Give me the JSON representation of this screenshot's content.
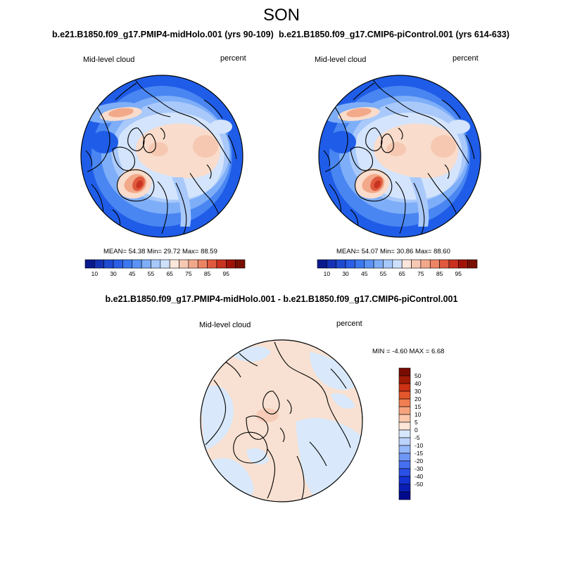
{
  "figure": {
    "season": "SON"
  },
  "panels": [
    {
      "title": "b.e21.B1850.f09_g17.PMIP4-midHolo.001 (yrs 90-109)",
      "variable": "Mid-level cloud",
      "units": "percent",
      "stats": "MEAN=  54.38  Min=  29.72  Max=  88.59",
      "mean": 54.38,
      "min": 29.72,
      "max": 88.59
    },
    {
      "title": "b.e21.B1850.f09_g17.CMIP6-piControl.001 (yrs 614-633)",
      "variable": "Mid-level cloud",
      "units": "percent",
      "stats": "MEAN=  54.07  Min=  30.86  Max=  88.60",
      "mean": 54.07,
      "min": 30.86,
      "max": 88.6
    },
    {
      "title": "b.e21.B1850.f09_g17.PMIP4-midHolo.001 - b.e21.B1850.f09_g17.CMIP6-piControl.001",
      "variable": "Mid-level cloud",
      "units": "percent",
      "stats": "MIN =  -4.60 MAX =   6.68",
      "min": -4.6,
      "max": 6.68
    }
  ],
  "colorbar_abs": {
    "colors": [
      "#0a1a8c",
      "#1432b4",
      "#1e4bd2",
      "#2a5fe6",
      "#3c78f0",
      "#5a93f5",
      "#7eaef8",
      "#a6c8fb",
      "#cde0fc",
      "#fbe6dc",
      "#f8c8b4",
      "#f3a88c",
      "#ec8464",
      "#e05a3e",
      "#c83220",
      "#a01408",
      "#781000"
    ],
    "tick_labels": [
      "10",
      "30",
      "45",
      "55",
      "65",
      "75",
      "85",
      "95"
    ]
  },
  "colorbar_diff": {
    "colors": [
      "#000a8c",
      "#0a1eb4",
      "#1432d2",
      "#2a50e6",
      "#4670f0",
      "#6e96f5",
      "#96b8fa",
      "#bcd4fc",
      "#d8e8fc",
      "#fde6d8",
      "#fbc8ac",
      "#f7a47e",
      "#f07e52",
      "#e4562c",
      "#cc3214",
      "#a01a06",
      "#780c00"
    ],
    "tick_labels": [
      "50",
      "40",
      "30",
      "20",
      "15",
      "10",
      "5",
      "0",
      "-5",
      "-10",
      "-15",
      "-20",
      "-30",
      "-40",
      "-50"
    ]
  },
  "map_colors": {
    "ocean_blue_dark": "#1f5de8",
    "ocean_blue_mid": "#4a86f2",
    "light_blue": "#a9c9fb",
    "pale_blue": "#d4e4fc",
    "pale_pink": "#f9dccb",
    "salmon": "#f2a98a",
    "red": "#e05a3e",
    "diff_pink": "#f8e1d2",
    "diff_blue": "#d9e9fb",
    "coast": "#000000"
  }
}
